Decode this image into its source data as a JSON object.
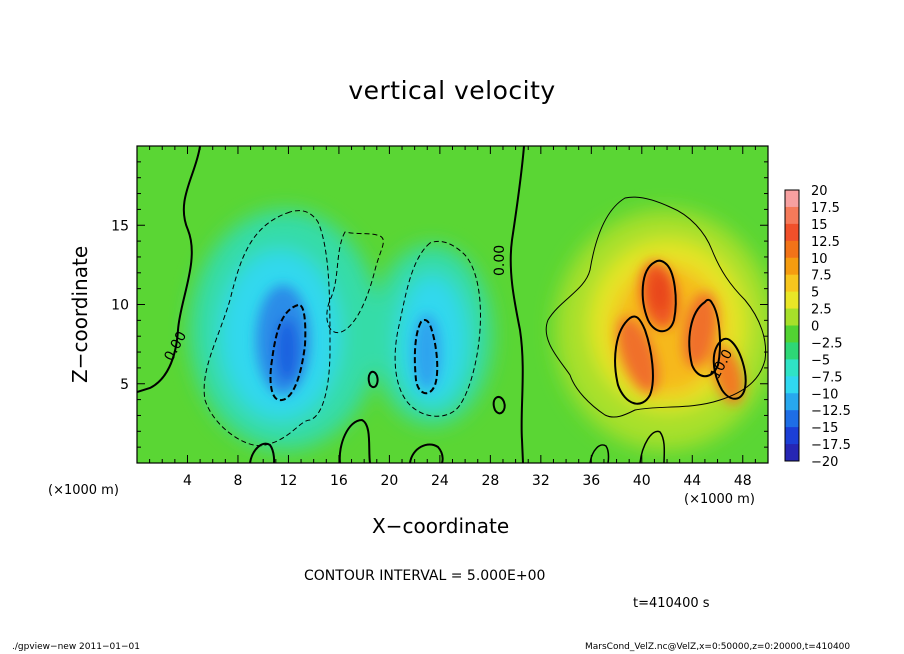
{
  "chart_data": {
    "type": "heatmap",
    "title": "vertical velocity",
    "xlabel": "X−coordinate",
    "ylabel": "Z−coordinate",
    "x_unit": "(×1000 m)",
    "y_unit": "(×1000 m)",
    "xlim": [
      0,
      50
    ],
    "ylim": [
      0,
      20
    ],
    "x_ticks": [
      4,
      8,
      12,
      16,
      20,
      24,
      28,
      32,
      36,
      40,
      44,
      48
    ],
    "y_ticks": [
      5,
      10,
      15
    ],
    "colorbar": {
      "levels": [
        "20",
        "17.5",
        "15",
        "12.5",
        "10",
        "7.5",
        "5",
        "2.5",
        "0",
        "−2.5",
        "−5",
        "−7.5",
        "−10",
        "−12.5",
        "−15",
        "−17.5",
        "−20"
      ],
      "colors": [
        "#f7a0a0",
        "#f57a5a",
        "#f0502a",
        "#f27318",
        "#f59c10",
        "#f7c61e",
        "#e9e627",
        "#a7e02a",
        "#52d332",
        "#2ed876",
        "#2fe3c6",
        "#30d8f0",
        "#28a8ee",
        "#1e6ee6",
        "#1c3fd6",
        "#2626b4",
        "#6a2aa8"
      ]
    },
    "contour_labels": [
      "0.00",
      "0.00",
      "10.0"
    ],
    "features": [
      {
        "kind": "updraft",
        "x": 41.5,
        "z": 10.5,
        "value": 15
      },
      {
        "kind": "updraft",
        "x": 45,
        "z": 6,
        "value": 12.5
      },
      {
        "kind": "downdraft",
        "x": 12,
        "z": 7,
        "value": -12.5
      },
      {
        "kind": "downdraft",
        "x": 22.5,
        "z": 7,
        "value": -10
      }
    ]
  },
  "contour_interval": "CONTOUR INTERVAL = 5.000E+00",
  "time_label": "t=410400  s",
  "footer_left": "./gpview−new   2011−01−01",
  "footer_right": "MarsCond_VelZ.nc@VelZ,x=0:50000,z=0:20000,t=410400"
}
